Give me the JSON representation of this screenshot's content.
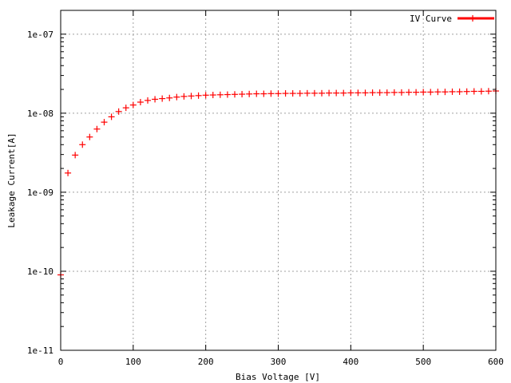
{
  "chart_data": {
    "type": "scatter",
    "xlabel": "Bias Voltage [V]",
    "ylabel": "Leakage Current[A]",
    "xlim": [
      0,
      600
    ],
    "ylim": [
      1e-11,
      2e-07
    ],
    "yscale": "log",
    "grid": true,
    "legend_position": "top-right",
    "x_ticks": [
      0,
      100,
      200,
      300,
      400,
      500,
      600
    ],
    "x_tick_labels": [
      "0",
      "100",
      "200",
      "300",
      "400",
      "500",
      "600"
    ],
    "y_ticks": [
      1e-11,
      1e-10,
      1e-09,
      1e-08,
      1e-07
    ],
    "y_tick_labels": [
      "1e-11",
      "1e-10",
      "1e-09",
      "1e-08",
      "1e-07"
    ],
    "series": [
      {
        "name": "IV Curve",
        "color": "#ff0000",
        "marker": "plus",
        "x": [
          0,
          10,
          20,
          30,
          40,
          50,
          60,
          70,
          80,
          90,
          100,
          110,
          120,
          130,
          140,
          150,
          160,
          170,
          180,
          190,
          200,
          210,
          220,
          230,
          240,
          250,
          260,
          270,
          280,
          290,
          300,
          310,
          320,
          330,
          340,
          350,
          360,
          370,
          380,
          390,
          400,
          410,
          420,
          430,
          440,
          450,
          460,
          470,
          480,
          490,
          500,
          510,
          520,
          530,
          540,
          550,
          560,
          570,
          580,
          590,
          600
        ],
        "y": [
          9e-11,
          1.75e-09,
          2.95e-09,
          4e-09,
          5e-09,
          6.3e-09,
          7.7e-09,
          9e-09,
          1.05e-08,
          1.17e-08,
          1.27e-08,
          1.38e-08,
          1.45e-08,
          1.5e-08,
          1.53e-08,
          1.56e-08,
          1.6e-08,
          1.63e-08,
          1.65e-08,
          1.67e-08,
          1.69e-08,
          1.7e-08,
          1.71e-08,
          1.72e-08,
          1.73e-08,
          1.74e-08,
          1.75e-08,
          1.76e-08,
          1.76e-08,
          1.77e-08,
          1.77e-08,
          1.78e-08,
          1.78e-08,
          1.78e-08,
          1.79e-08,
          1.79e-08,
          1.79e-08,
          1.8e-08,
          1.8e-08,
          1.8e-08,
          1.81e-08,
          1.81e-08,
          1.81e-08,
          1.82e-08,
          1.82e-08,
          1.82e-08,
          1.83e-08,
          1.83e-08,
          1.84e-08,
          1.84e-08,
          1.85e-08,
          1.85e-08,
          1.86e-08,
          1.86e-08,
          1.87e-08,
          1.87e-08,
          1.88e-08,
          1.89e-08,
          1.89e-08,
          1.9e-08,
          1.91e-08
        ]
      }
    ]
  }
}
